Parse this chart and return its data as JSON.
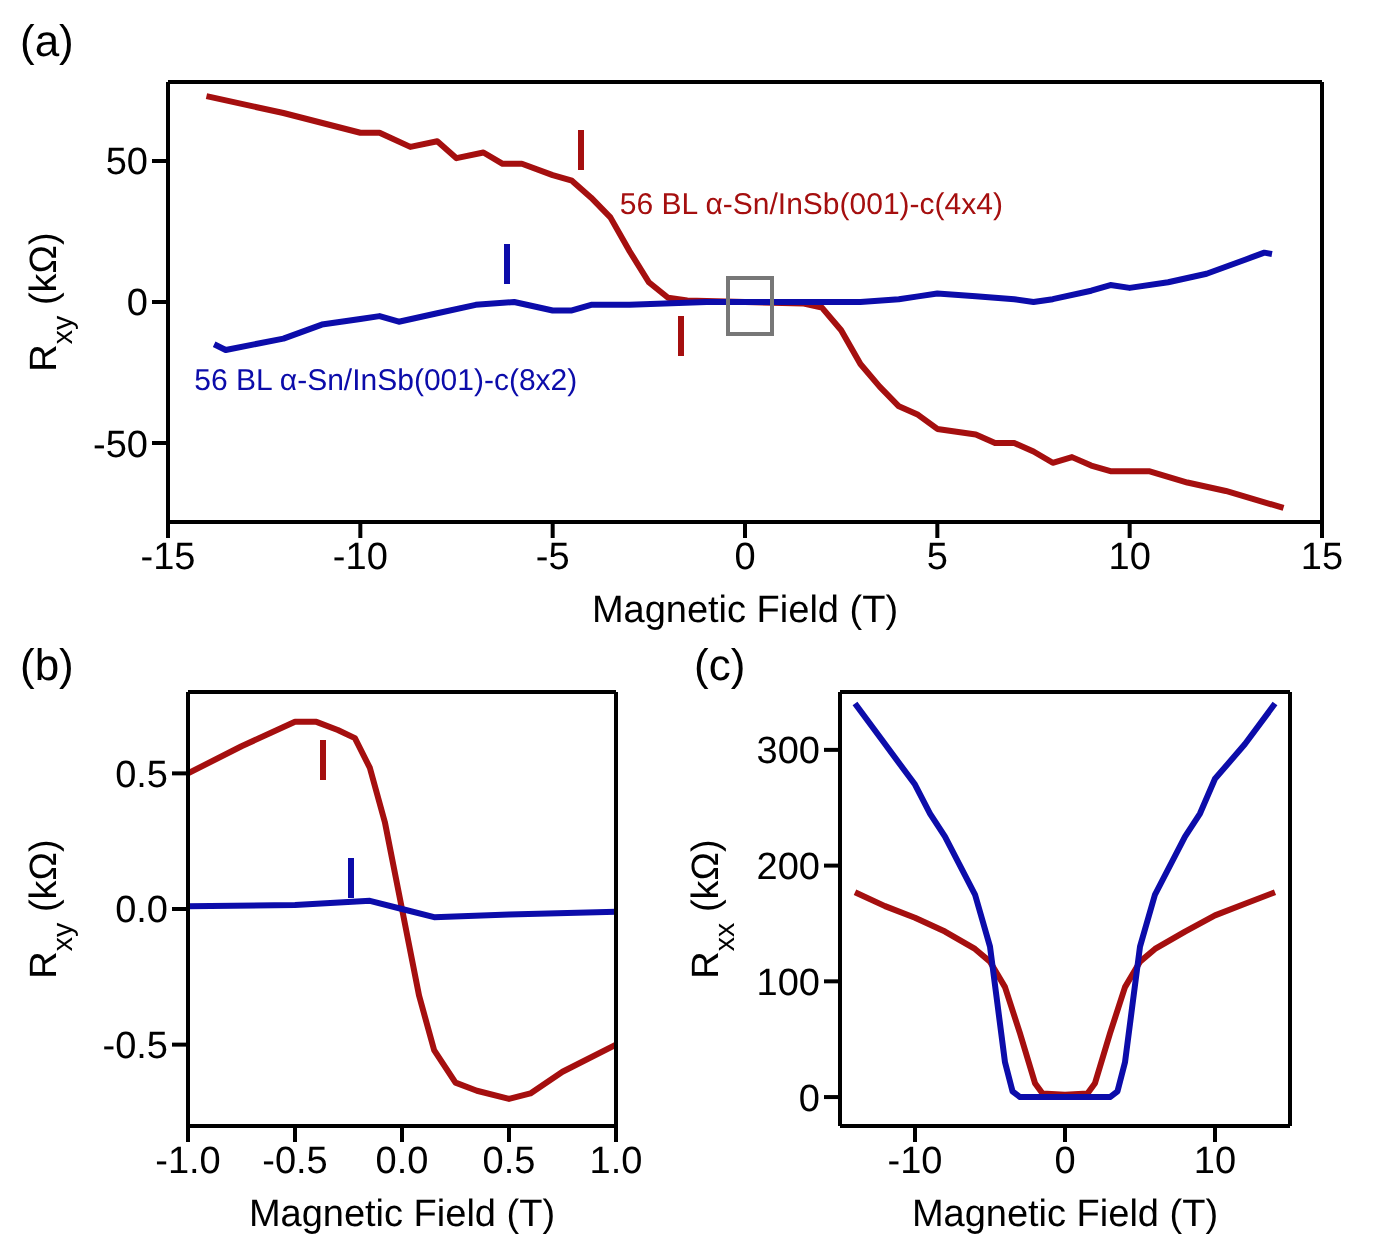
{
  "chart_data": [
    {
      "type": "line",
      "title": "(a)",
      "xlabel": "Magnetic Field (T)",
      "ylabel": "R$_{xy}$ (kΩ)",
      "xlim": [
        -15,
        15
      ],
      "xticks": [
        -15,
        -10,
        -5,
        0,
        5,
        10,
        15
      ],
      "ylim": [
        -78,
        78
      ],
      "yticks": [
        -50,
        0,
        50
      ],
      "grid": false,
      "legend": false,
      "series": [
        {
          "name": "56 BL α-Sn/InSb(001)-c(4x4)",
          "color": "#a50f0f",
          "x": [
            -14,
            -12,
            -10,
            -9.5,
            -8.7,
            -8,
            -7.5,
            -6.8,
            -6.3,
            -5.8,
            -5,
            -4.5,
            -4,
            -3.5,
            -3,
            -2.5,
            -2,
            -1.5,
            0,
            1.5,
            2,
            2.5,
            3,
            3.5,
            4,
            4.5,
            5,
            6,
            6.5,
            7,
            7.5,
            8,
            8.5,
            9,
            9.5,
            10.5,
            11.5,
            12.5,
            14
          ],
          "values": [
            73,
            67,
            60,
            60,
            55,
            57,
            51,
            53,
            49,
            49,
            45,
            43,
            37,
            30,
            18,
            7,
            1.5,
            0.5,
            0,
            -0.5,
            -2,
            -10,
            -22,
            -30,
            -37,
            -40,
            -45,
            -47,
            -50,
            -50,
            -53,
            -57,
            -55,
            -58,
            -60,
            -60,
            -64,
            -67,
            -73
          ]
        },
        {
          "name": "56 BL α-Sn/InSb(001)-c(8x2)",
          "color": "#0c0caa",
          "x": [
            -13.8,
            -13.5,
            -12,
            -11,
            -10,
            -9.5,
            -9,
            -8,
            -7,
            -6,
            -5,
            -4.5,
            -4,
            -3,
            -1,
            0,
            2,
            3,
            4,
            4.5,
            5,
            6,
            7,
            7.5,
            8,
            9,
            9.5,
            10,
            11,
            12,
            13,
            13.5,
            13.7
          ],
          "values": [
            -15,
            -17,
            -13,
            -8,
            -6,
            -5,
            -7,
            -4,
            -1,
            0,
            -3,
            -3,
            -1,
            -1,
            0,
            0,
            0,
            0,
            1,
            2,
            3,
            2,
            1,
            0,
            1,
            4,
            6,
            5,
            7,
            10,
            15,
            17.5,
            17
          ]
        }
      ]
    },
    {
      "type": "line",
      "title": "(b)",
      "xlabel": "Magnetic Field (T)",
      "ylabel": "R$_{xy}$ (kΩ)",
      "xlim": [
        -1,
        1
      ],
      "xticks": [
        {
          "value": -1,
          "label": "-1.0"
        },
        {
          "value": -0.5,
          "label": "-0.5"
        },
        {
          "value": 0,
          "label": "0.0"
        },
        {
          "value": 0.5,
          "label": "0.5"
        },
        {
          "value": 1,
          "label": "1.0"
        }
      ],
      "ylim": [
        -0.8,
        0.8
      ],
      "yticks": [
        -0.5,
        {
          "value": 0,
          "label": "0.0"
        },
        0.5
      ],
      "grid": false,
      "legend": false,
      "series": [
        {
          "color": "#a50f0f",
          "x": [
            -1,
            -0.75,
            -0.5,
            -0.4,
            -0.3,
            -0.22,
            -0.15,
            -0.08,
            0,
            0.08,
            0.15,
            0.25,
            0.35,
            0.5,
            0.6,
            0.75,
            1
          ],
          "values": [
            0.5,
            0.6,
            0.69,
            0.69,
            0.66,
            0.63,
            0.52,
            0.32,
            0,
            -0.32,
            -0.52,
            -0.64,
            -0.67,
            -0.7,
            -0.68,
            -0.6,
            -0.5
          ]
        },
        {
          "color": "#0c0caa",
          "x": [
            -1,
            -0.5,
            -0.15,
            0,
            0.15,
            0.5,
            1
          ],
          "values": [
            0.01,
            0.015,
            0.03,
            0,
            -0.03,
            -0.02,
            -0.01
          ]
        }
      ]
    },
    {
      "type": "line",
      "title": "(c)",
      "xlabel": "Magnetic Field (T)",
      "ylabel": "R$_{xx}$ (kΩ)",
      "xlim": [
        -15,
        15
      ],
      "xticks": [
        -10,
        0,
        10
      ],
      "ylim": [
        -25,
        350
      ],
      "yticks": [
        0,
        100,
        200,
        300
      ],
      "grid": false,
      "legend": false,
      "series": [
        {
          "color": "#a50f0f",
          "x": [
            -14,
            -12,
            -10,
            -8,
            -6,
            -5,
            -4,
            -3,
            -2,
            -1.5,
            0,
            1.5,
            2,
            3,
            4,
            5,
            6,
            8,
            10,
            12,
            14
          ],
          "values": [
            177,
            165,
            155,
            143,
            128,
            117,
            95,
            55,
            12,
            3,
            2,
            3,
            12,
            55,
            95,
            117,
            128,
            143,
            157,
            167,
            177
          ]
        },
        {
          "color": "#0c0caa",
          "x": [
            -14,
            -12,
            -10,
            -9,
            -8,
            -7,
            -6,
            -5,
            -4.5,
            -4,
            -3.5,
            -3,
            3,
            3.5,
            4,
            4.5,
            5,
            6,
            7,
            8,
            9,
            10,
            12,
            14
          ],
          "values": [
            340,
            305,
            270,
            245,
            225,
            200,
            175,
            130,
            80,
            30,
            5,
            0,
            0,
            5,
            30,
            80,
            130,
            175,
            200,
            225,
            245,
            275,
            305,
            340
          ]
        }
      ]
    }
  ]
}
